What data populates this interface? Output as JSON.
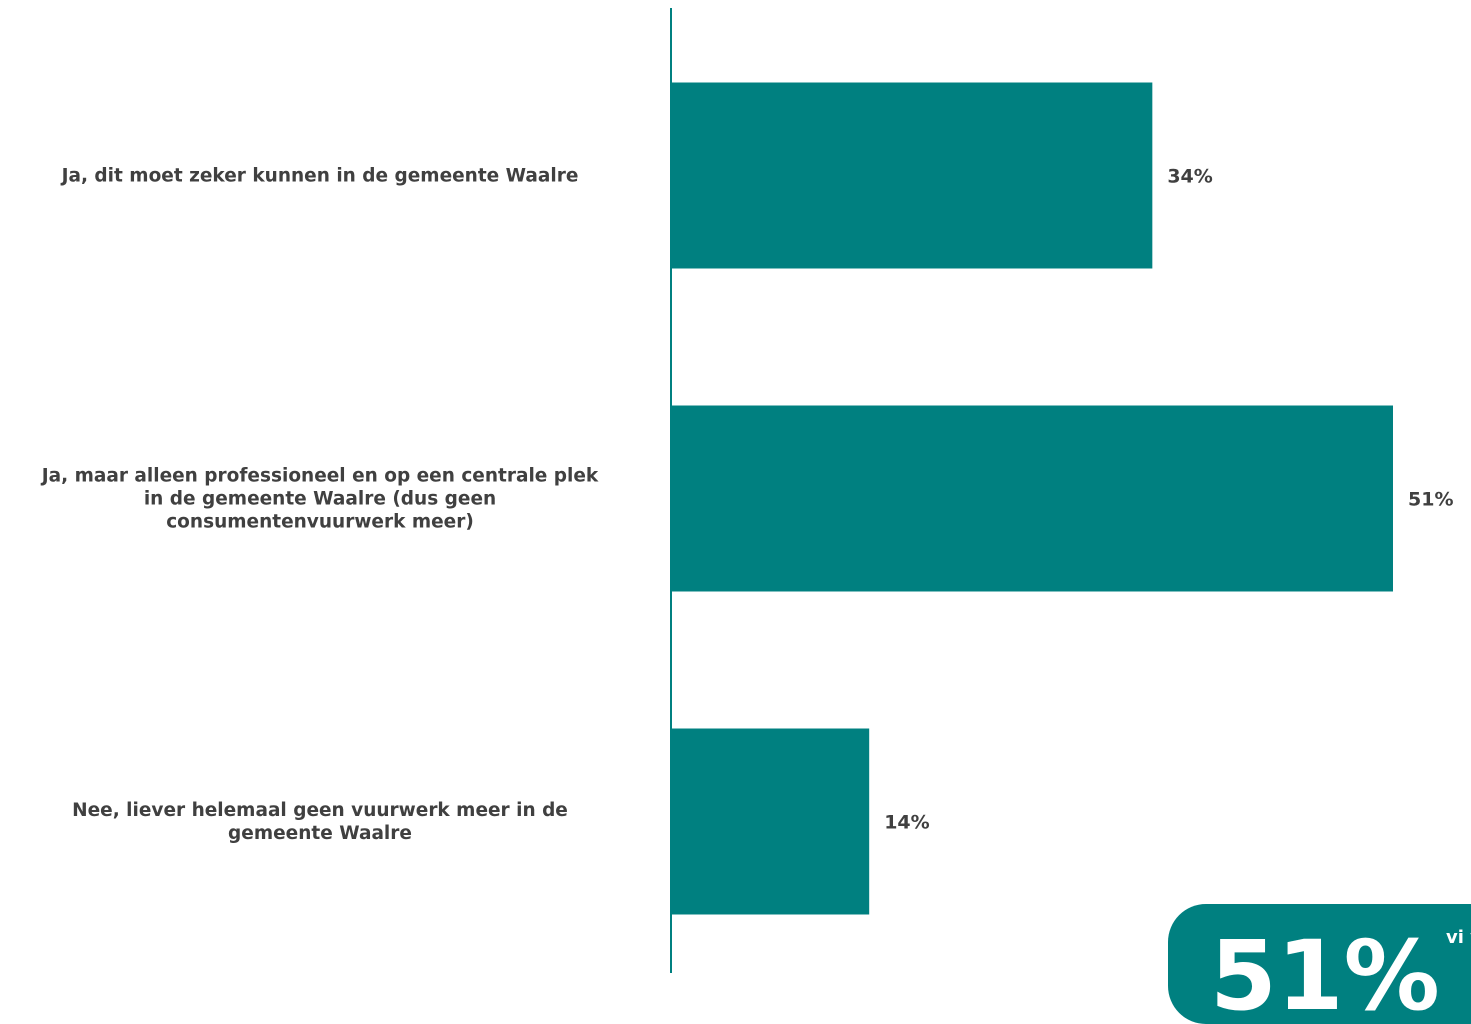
{
  "chart_data": {
    "type": "bar",
    "orientation": "horizontal",
    "categories": [
      "Ja, dit moet zeker kunnen in de gemeente Waalre",
      "Ja, maar alleen professioneel en op een centrale plek in de gemeente Waalre (dus geen consumentenvuurwerk meer)",
      "Nee, liever helemaal geen vuurwerk meer in de gemeente Waalre"
    ],
    "category_lines": [
      [
        "Ja, dit moet zeker kunnen in de gemeente Waalre"
      ],
      [
        "Ja, maar alleen professioneel en op een centrale plek",
        "in de gemeente Waalre (dus geen",
        "consumentenvuurwerk meer)"
      ],
      [
        "Nee, liever helemaal geen vuurwerk meer in de",
        "gemeente Waalre"
      ]
    ],
    "values": [
      34,
      51,
      14
    ],
    "value_labels": [
      "34%",
      "51%",
      "14%"
    ],
    "unit": "%",
    "title": "",
    "xlabel": "",
    "ylabel": "",
    "xlim": [
      0,
      51
    ],
    "grid": false,
    "legend": "none",
    "bar_color": "#008080"
  },
  "callout": {
    "value": "51%",
    "text_fragment": "vi v"
  },
  "colors": {
    "accent": "#008080",
    "label_text": "#404040"
  }
}
